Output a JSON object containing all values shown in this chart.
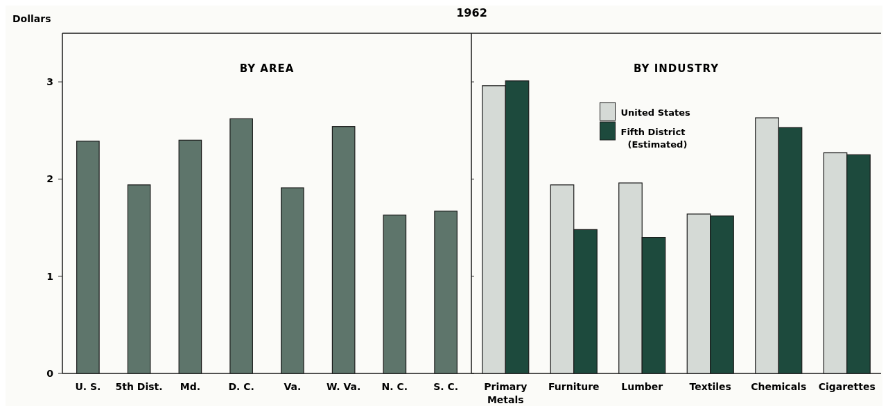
{
  "chart_data": [
    {
      "type": "bar",
      "title": "1962",
      "subtitle": "BY AREA",
      "ylabel": "Dollars",
      "categories": [
        "U. S.",
        "5th Dist.",
        "Md.",
        "D. C.",
        "Va.",
        "W. Va.",
        "N. C.",
        "S. C."
      ],
      "values": [
        2.39,
        1.94,
        2.4,
        2.62,
        1.91,
        2.54,
        1.63,
        1.67
      ],
      "color": "#5e756b",
      "ylim": [
        0,
        3.5
      ],
      "yticks": [
        0,
        1,
        2,
        3
      ],
      "grid": false
    },
    {
      "type": "bar",
      "subtitle": "BY INDUSTRY",
      "categories": [
        "Primary Metals",
        "Furniture",
        "Lumber",
        "Textiles",
        "Chemicals",
        "Cigarettes"
      ],
      "series": [
        {
          "name": "United States",
          "color": "#d5dad6",
          "values": [
            2.96,
            1.94,
            1.96,
            1.64,
            2.63,
            2.27
          ]
        },
        {
          "name": "Fifth District (Estimated)",
          "color": "#1d4a3d",
          "values": [
            3.01,
            1.48,
            1.4,
            1.62,
            2.53,
            2.25
          ]
        }
      ],
      "ylim": [
        0,
        3.5
      ],
      "yticks": [
        0,
        1,
        2,
        3
      ],
      "tick_labels": "x",
      "legend": "top",
      "grid": false
    }
  ]
}
